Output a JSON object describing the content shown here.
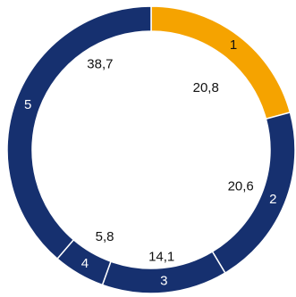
{
  "chart_data": {
    "type": "pie",
    "style": "donut",
    "categories": [
      "1",
      "2",
      "3",
      "4",
      "5"
    ],
    "values": [
      20.8,
      20.6,
      14.1,
      5.8,
      38.7
    ],
    "value_labels": [
      "20,8",
      "20,6",
      "14,1",
      "5,8",
      "38,7"
    ],
    "colors": [
      "#F5A300",
      "#16306F",
      "#16306F",
      "#16306F",
      "#16306F"
    ],
    "label_colors": [
      "#111111",
      "#ffffff",
      "#ffffff",
      "#ffffff",
      "#ffffff"
    ],
    "start_angle": "top",
    "direction": "clockwise",
    "title": "",
    "legend": "none"
  }
}
